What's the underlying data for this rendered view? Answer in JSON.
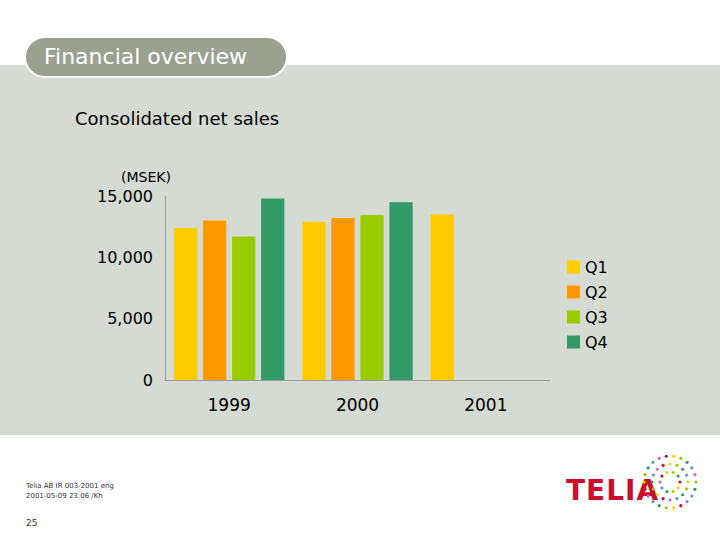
{
  "slide": {
    "header": "Financial overview",
    "footer": [
      "Telia AB IR 003-2001 eng",
      "2001-05-09 23:06 /Kh"
    ],
    "page_number": "25",
    "logo": "TELIA"
  },
  "chart_data": {
    "type": "bar",
    "title": "Consolidated net sales",
    "y_label": "(MSEK)",
    "categories": [
      "1999",
      "2000",
      "2001"
    ],
    "series": [
      {
        "name": "Q1",
        "color": "#ffcc00",
        "values": [
          12400,
          12900,
          13500
        ]
      },
      {
        "name": "Q2",
        "color": "#ff9900",
        "values": [
          13000,
          13200,
          null
        ]
      },
      {
        "name": "Q3",
        "color": "#99cc00",
        "values": [
          11700,
          13450,
          null
        ]
      },
      {
        "name": "Q4",
        "color": "#339966",
        "values": [
          14800,
          14500,
          null
        ]
      }
    ],
    "ylim": [
      0,
      15000
    ],
    "yticks": [
      0,
      {
        "value": 5000,
        "label": "5,000"
      },
      {
        "value": 10000,
        "label": "10,000"
      },
      {
        "value": 15000,
        "label": "15,000"
      }
    ],
    "grid": false,
    "legend": "right"
  }
}
